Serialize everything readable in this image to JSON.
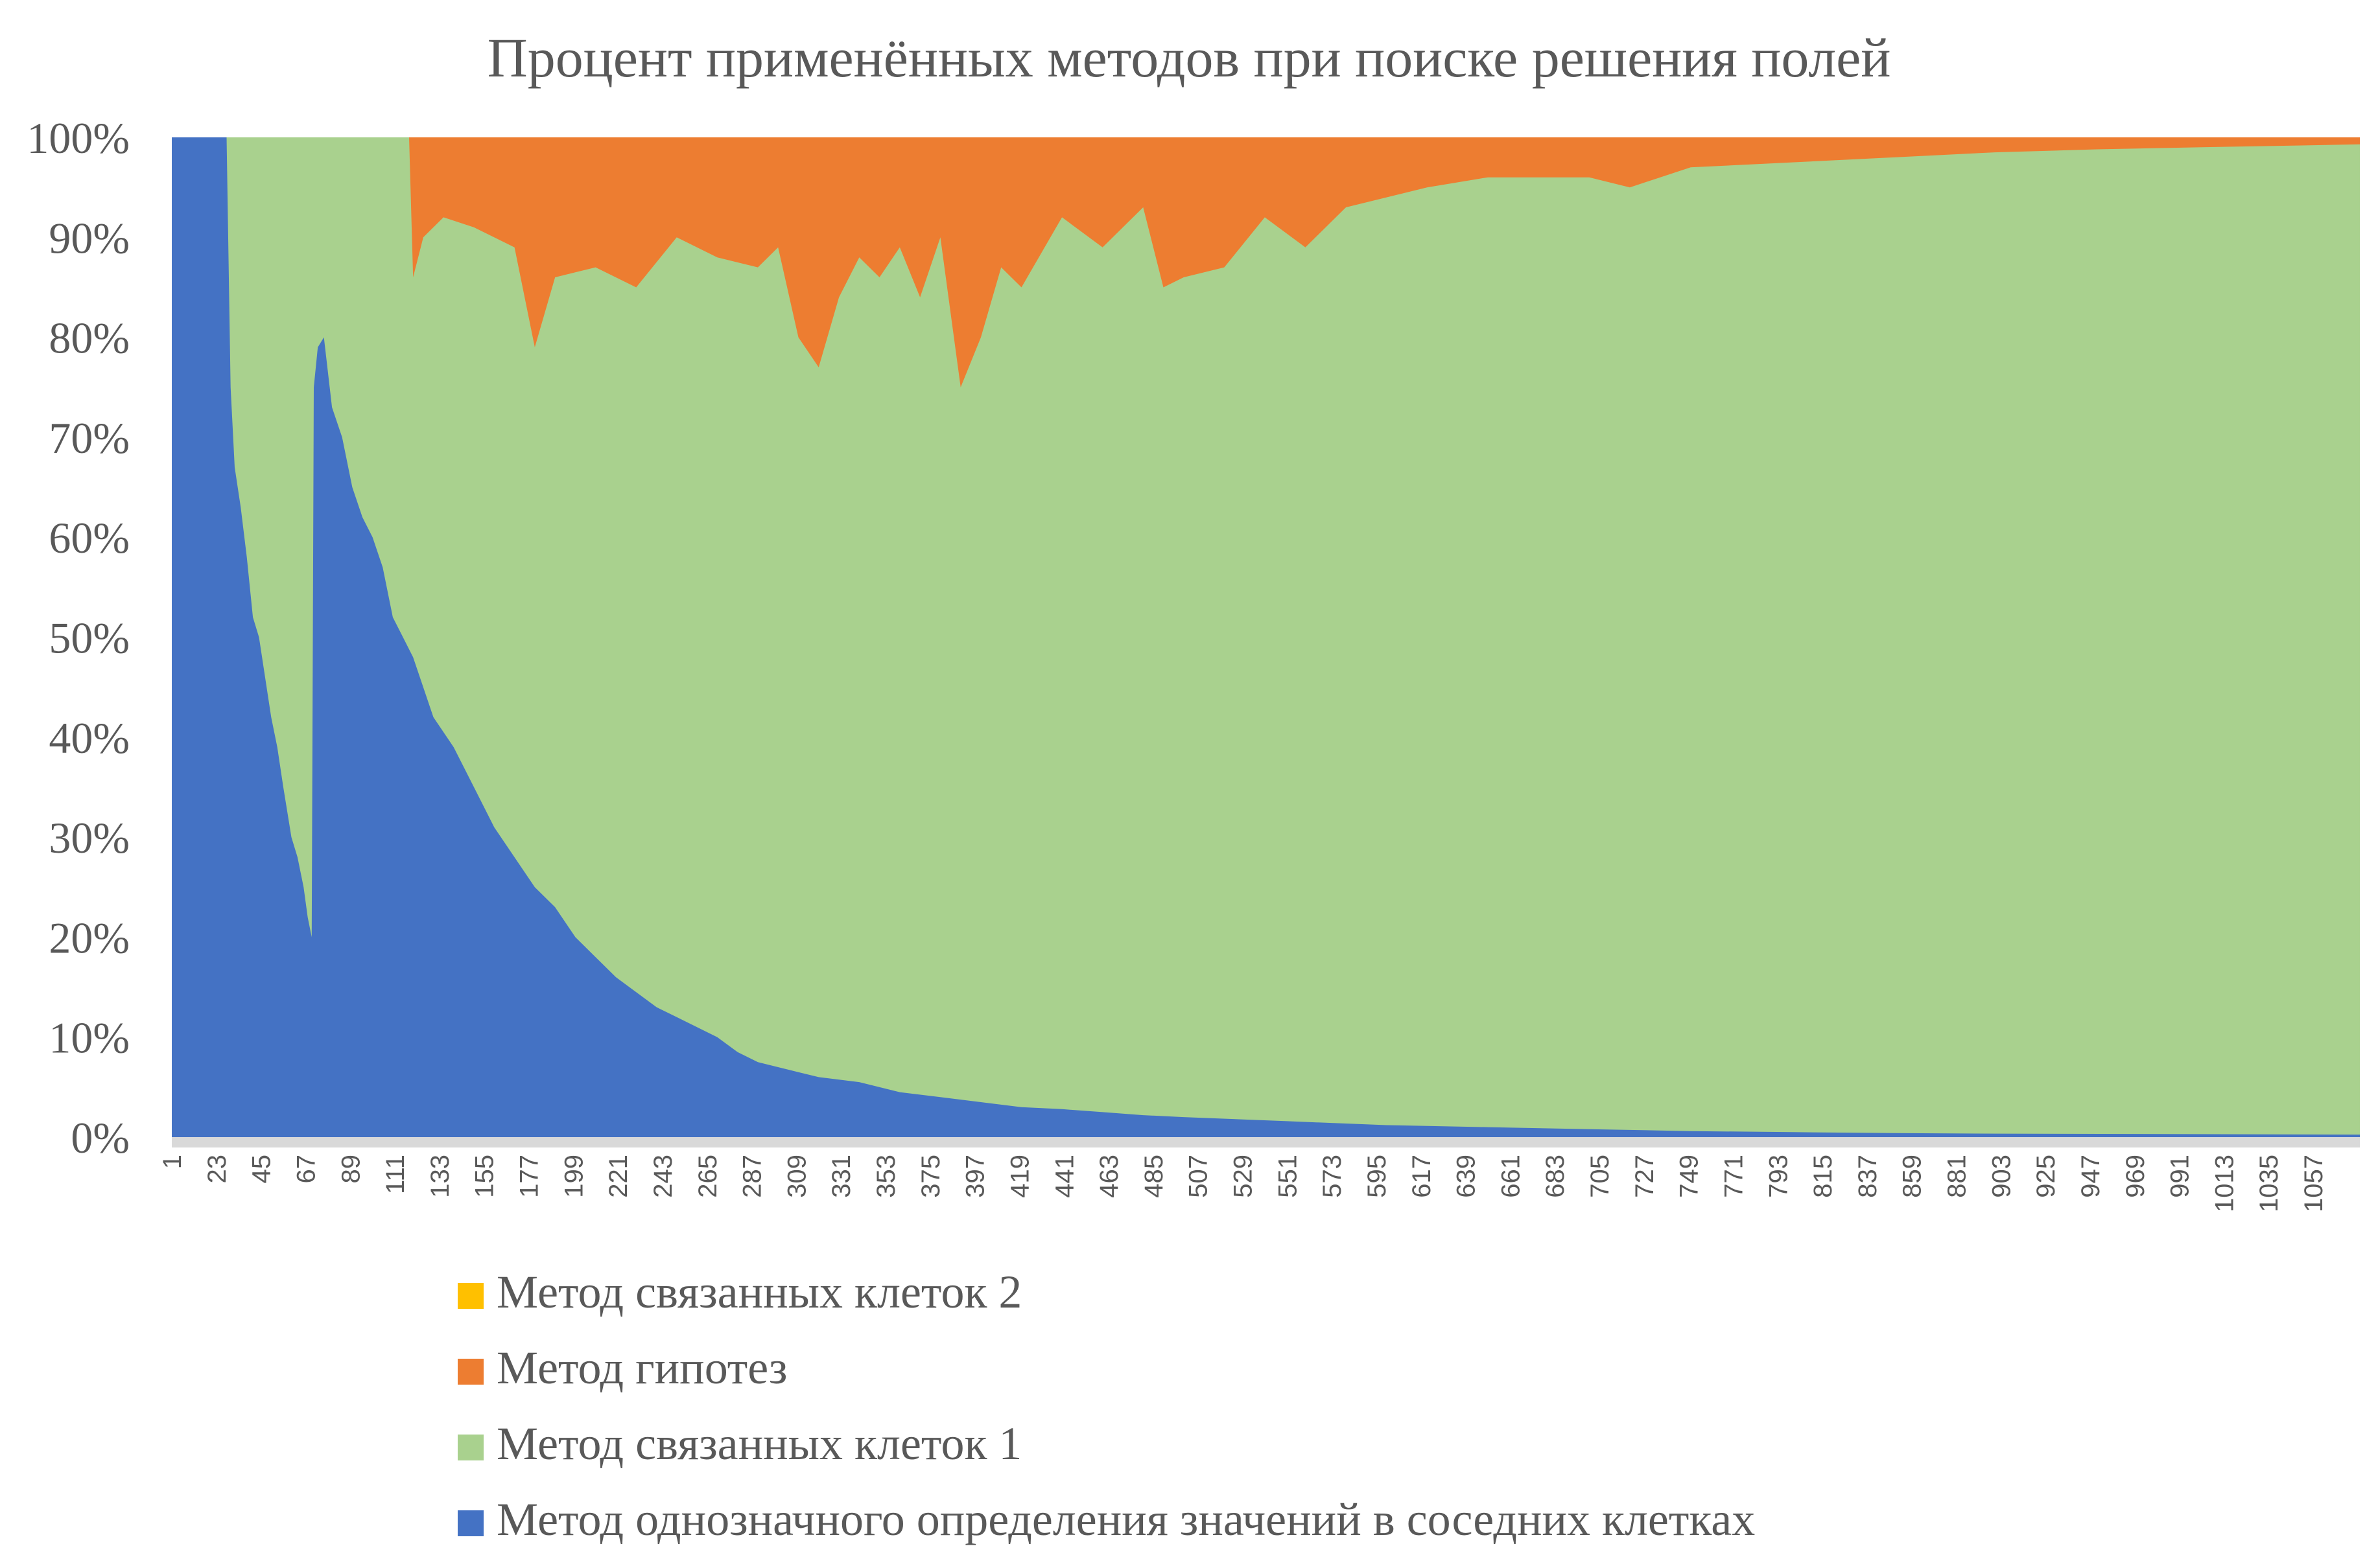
{
  "chart_data": {
    "type": "area",
    "stacked_percent": true,
    "title": "Процент применённых методов при поиске решения полей",
    "xlabel": "",
    "ylabel": "",
    "ylim": [
      0,
      100
    ],
    "x_range": [
      1,
      1080
    ],
    "y_ticks": [
      "0%",
      "10%",
      "20%",
      "30%",
      "40%",
      "50%",
      "60%",
      "70%",
      "80%",
      "90%",
      "100%"
    ],
    "x_ticks": [
      "1",
      "23",
      "45",
      "67",
      "89",
      "111",
      "133",
      "155",
      "177",
      "199",
      "221",
      "243",
      "265",
      "287",
      "309",
      "331",
      "353",
      "375",
      "397",
      "419",
      "441",
      "463",
      "485",
      "507",
      "529",
      "551",
      "573",
      "595",
      "617",
      "639",
      "661",
      "683",
      "705",
      "727",
      "749",
      "771",
      "793",
      "815",
      "837",
      "859",
      "881",
      "903",
      "925",
      "947",
      "969",
      "991",
      "1013",
      "1035",
      "1057"
    ],
    "legend_position": "bottom",
    "grid": false,
    "series": [
      {
        "name": "Метод однозначного определения значений в соседних клетках",
        "color": "#4472C4",
        "points": [
          [
            1,
            100
          ],
          [
            28,
            100
          ],
          [
            30,
            75
          ],
          [
            32,
            67
          ],
          [
            35,
            63
          ],
          [
            38,
            58
          ],
          [
            41,
            52
          ],
          [
            44,
            50
          ],
          [
            47,
            46
          ],
          [
            50,
            42
          ],
          [
            53,
            39
          ],
          [
            56,
            35
          ],
          [
            60,
            30
          ],
          [
            63,
            28
          ],
          [
            66,
            25
          ],
          [
            68,
            22
          ],
          [
            70,
            20
          ],
          [
            71,
            75
          ],
          [
            73,
            79
          ],
          [
            76,
            80
          ],
          [
            80,
            73
          ],
          [
            85,
            70
          ],
          [
            90,
            65
          ],
          [
            95,
            62
          ],
          [
            100,
            60
          ],
          [
            105,
            57
          ],
          [
            110,
            52
          ],
          [
            115,
            50
          ],
          [
            120,
            48
          ],
          [
            125,
            45
          ],
          [
            130,
            42
          ],
          [
            140,
            39
          ],
          [
            150,
            35
          ],
          [
            160,
            31
          ],
          [
            170,
            28
          ],
          [
            180,
            25
          ],
          [
            190,
            23
          ],
          [
            200,
            20
          ],
          [
            210,
            18
          ],
          [
            220,
            16
          ],
          [
            230,
            14.5
          ],
          [
            240,
            13
          ],
          [
            250,
            12
          ],
          [
            260,
            11
          ],
          [
            270,
            10
          ],
          [
            280,
            8.5
          ],
          [
            290,
            7.5
          ],
          [
            300,
            7
          ],
          [
            310,
            6.5
          ],
          [
            320,
            6
          ],
          [
            340,
            5.5
          ],
          [
            360,
            4.5
          ],
          [
            380,
            4
          ],
          [
            400,
            3.5
          ],
          [
            420,
            3
          ],
          [
            440,
            2.8
          ],
          [
            460,
            2.5
          ],
          [
            480,
            2.2
          ],
          [
            500,
            2
          ],
          [
            550,
            1.6
          ],
          [
            600,
            1.2
          ],
          [
            650,
            1
          ],
          [
            700,
            0.8
          ],
          [
            750,
            0.6
          ],
          [
            800,
            0.5
          ],
          [
            850,
            0.4
          ],
          [
            900,
            0.35
          ],
          [
            1000,
            0.3
          ],
          [
            1080,
            0.25
          ]
        ]
      },
      {
        "name": "Метод связанных клеток 1",
        "color": "#A9D18E",
        "top_points": [
          [
            1,
            100
          ],
          [
            118,
            100
          ],
          [
            120,
            86
          ],
          [
            125,
            90
          ],
          [
            135,
            92
          ],
          [
            150,
            91
          ],
          [
            170,
            89
          ],
          [
            180,
            79
          ],
          [
            190,
            86
          ],
          [
            210,
            87
          ],
          [
            230,
            85
          ],
          [
            250,
            90
          ],
          [
            270,
            88
          ],
          [
            290,
            87
          ],
          [
            300,
            89
          ],
          [
            310,
            80
          ],
          [
            320,
            77
          ],
          [
            330,
            84
          ],
          [
            340,
            88
          ],
          [
            350,
            86
          ],
          [
            360,
            89
          ],
          [
            370,
            84
          ],
          [
            380,
            90
          ],
          [
            390,
            75
          ],
          [
            400,
            80
          ],
          [
            410,
            87
          ],
          [
            420,
            85
          ],
          [
            440,
            92
          ],
          [
            460,
            89
          ],
          [
            480,
            93
          ],
          [
            490,
            85
          ],
          [
            500,
            86
          ],
          [
            520,
            87
          ],
          [
            540,
            92
          ],
          [
            560,
            89
          ],
          [
            580,
            93
          ],
          [
            600,
            94
          ],
          [
            620,
            95
          ],
          [
            650,
            96
          ],
          [
            700,
            96
          ],
          [
            720,
            95
          ],
          [
            750,
            97
          ],
          [
            800,
            97.5
          ],
          [
            850,
            98
          ],
          [
            900,
            98.5
          ],
          [
            950,
            98.8
          ],
          [
            1000,
            99
          ],
          [
            1080,
            99.3
          ]
        ]
      },
      {
        "name": "Метод гипотез",
        "color": "#ED7D31"
      },
      {
        "name": "Метод связанных клеток 2",
        "color": "#FFC000"
      }
    ]
  },
  "legend": [
    {
      "label": "Метод связанных клеток 2",
      "color": "#FFC000"
    },
    {
      "label": "Метод гипотез",
      "color": "#ED7D31"
    },
    {
      "label": "Метод связанных клеток 1",
      "color": "#A9D18E"
    },
    {
      "label": "Метод однозначного определения значений в соседних клетках",
      "color": "#4472C4"
    }
  ]
}
